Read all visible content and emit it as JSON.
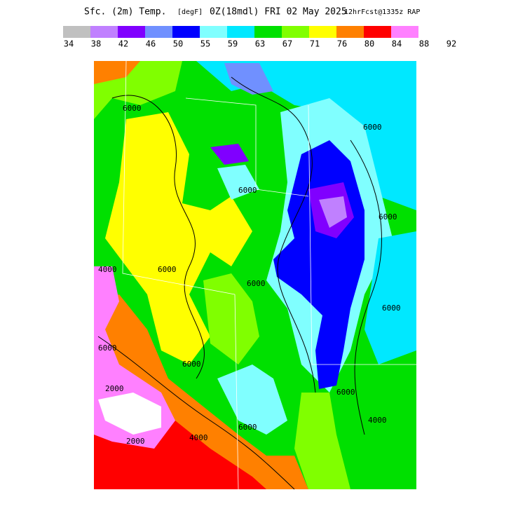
{
  "header": {
    "title_parts": [
      "Sfc. (2m) Temp.",
      "[degF]",
      "0Z(18mdl) FRI 02 May 2025",
      "12hrFcst@1335z RAP"
    ]
  },
  "legend": {
    "colors": [
      "#c0c0c0",
      "#c080ff",
      "#8000ff",
      "#7090ff",
      "#0000ff",
      "#80ffff",
      "#00e8ff",
      "#00e000",
      "#80ff00",
      "#ffff00",
      "#ff8000",
      "#ff0000",
      "#ff80ff"
    ],
    "labels": [
      "34",
      "38",
      "42",
      "46",
      "50",
      "55",
      "59",
      "63",
      "67",
      "71",
      "76",
      "80",
      "84",
      "88",
      "92"
    ]
  },
  "map": {
    "contour_labels": [
      "6000",
      "6000",
      "6000",
      "6000",
      "6000",
      "6000",
      "6000",
      "4000",
      "6000",
      "2000",
      "2000",
      "6000",
      "6000",
      "6000",
      "4000",
      "4000"
    ]
  }
}
